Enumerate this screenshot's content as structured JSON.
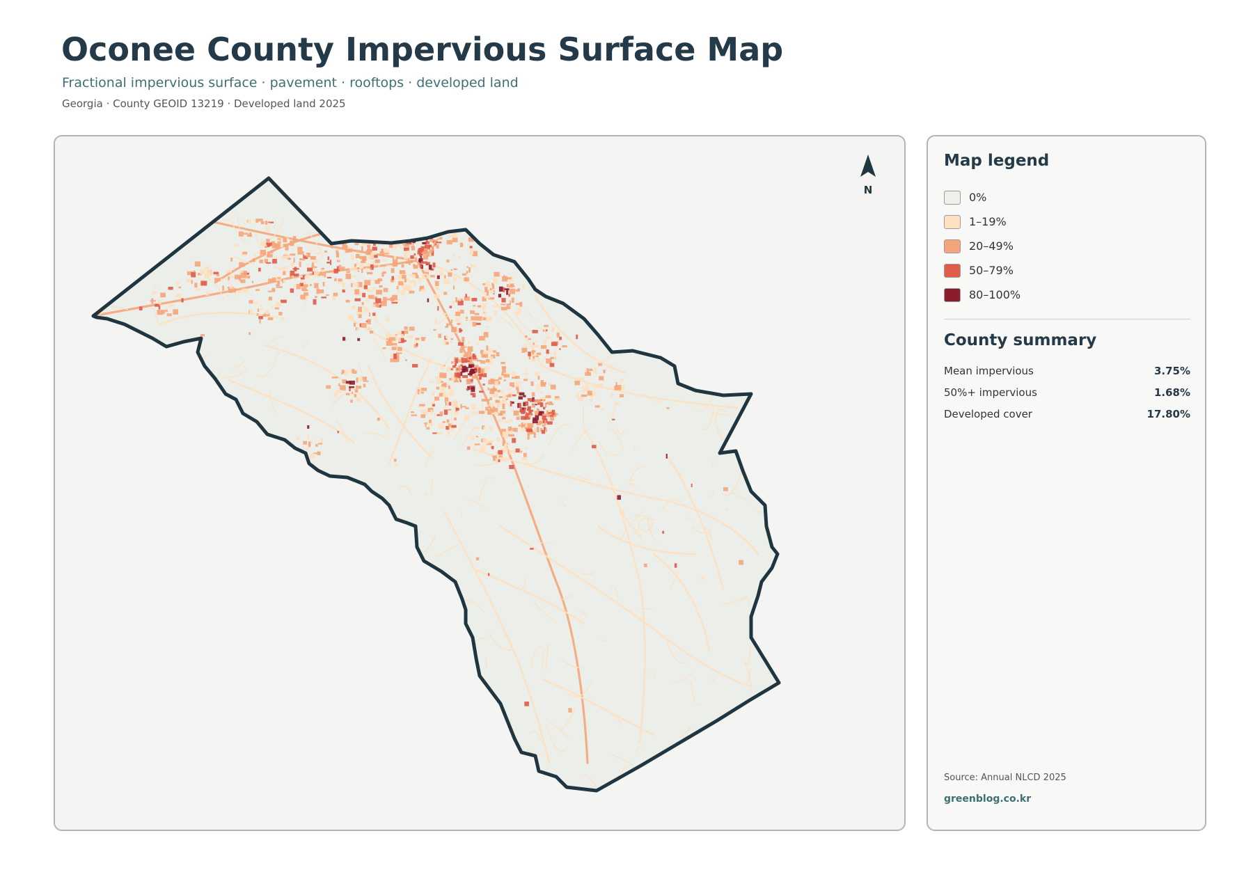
{
  "header": {
    "title": "Oconee County Impervious Surface Map",
    "subtitle": "Fractional impervious surface · pavement · rooftops · developed land",
    "meta": "Georgia · County GEOID 13219 · Developed land 2025"
  },
  "map": {
    "north_arrow_label": "N",
    "boundary_color": "#1f3540",
    "land_color": "#eceee9"
  },
  "legend": {
    "title": "Map legend",
    "classes": [
      {
        "label": "0%",
        "color": "#efefec"
      },
      {
        "label": "1–19%",
        "color": "#fde0c0"
      },
      {
        "label": "20–49%",
        "color": "#f5a57a"
      },
      {
        "label": "50–79%",
        "color": "#df5b4a"
      },
      {
        "label": "80–100%",
        "color": "#8c1b2d"
      }
    ]
  },
  "summary": {
    "title": "County summary",
    "rows": [
      {
        "label": "Mean impervious",
        "value": "3.75%"
      },
      {
        "label": "50%+ impervious",
        "value": "1.68%"
      },
      {
        "label": "Developed cover",
        "value": "17.80%"
      }
    ]
  },
  "footer": {
    "source": "Source: Annual NLCD 2025",
    "credit": "greenblog.co.kr"
  }
}
